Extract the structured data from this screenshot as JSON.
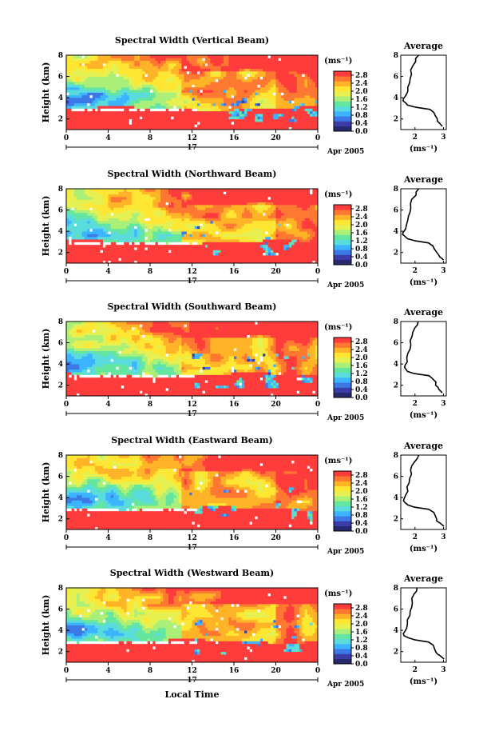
{
  "chart_data": {
    "type": "heatmap",
    "panels": [
      {
        "title": "Spectral Width (Vertical Beam)"
      },
      {
        "title": "Spectral Width (Northward Beam)"
      },
      {
        "title": "Spectral Width (Southward Beam)"
      },
      {
        "title": "Spectral Width (Eastward Beam)"
      },
      {
        "title": "Spectral Width (Westward Beam)"
      }
    ],
    "ylabel": "Height (km)",
    "ylim": [
      1,
      8
    ],
    "yticks": [
      "2",
      "4",
      "6",
      "8"
    ],
    "xlabel": "Local Time",
    "xlim": [
      0,
      24
    ],
    "xticks": [
      "0",
      "4",
      "8",
      "12",
      "16",
      "20",
      "0"
    ],
    "day_label": "17",
    "month_label": "Apr 2005",
    "colorbar": {
      "unit": "(ms⁻¹)",
      "ticks": [
        "2.8",
        "2.4",
        "2.0",
        "1.6",
        "1.2",
        "0.8",
        "0.4",
        "0.0"
      ],
      "range": [
        0,
        3.0
      ],
      "colors": [
        "#28286e",
        "#3c3ca8",
        "#3c78e6",
        "#3cb4ff",
        "#5adcdc",
        "#64e6a0",
        "#aaf078",
        "#e6f050",
        "#ffe632",
        "#ffb428",
        "#ff7832",
        "#ff3c3c"
      ]
    },
    "average_profile": {
      "title": "Average",
      "xlabel": "(ms⁻¹)",
      "xticks": [
        "2",
        "3"
      ],
      "xlim": [
        1.5,
        3.1
      ],
      "ylim": [
        1,
        8
      ],
      "yticks": [
        "2",
        "4",
        "6",
        "8"
      ],
      "height": [
        1.3,
        1.6,
        1.8,
        2.0,
        2.3,
        2.6,
        2.9,
        3.1,
        3.3,
        3.5,
        3.7,
        3.9,
        4.2,
        4.6,
        5.0,
        5.4,
        5.8,
        6.2,
        6.6,
        7.0,
        7.4,
        7.7,
        8.0
      ],
      "width": [
        3.0,
        2.85,
        2.8,
        2.75,
        2.7,
        2.65,
        2.5,
        2.0,
        1.75,
        1.65,
        1.6,
        1.62,
        1.7,
        1.72,
        1.75,
        1.8,
        1.82,
        1.85,
        1.88,
        1.9,
        2.0,
        2.05,
        2.1
      ]
    }
  }
}
